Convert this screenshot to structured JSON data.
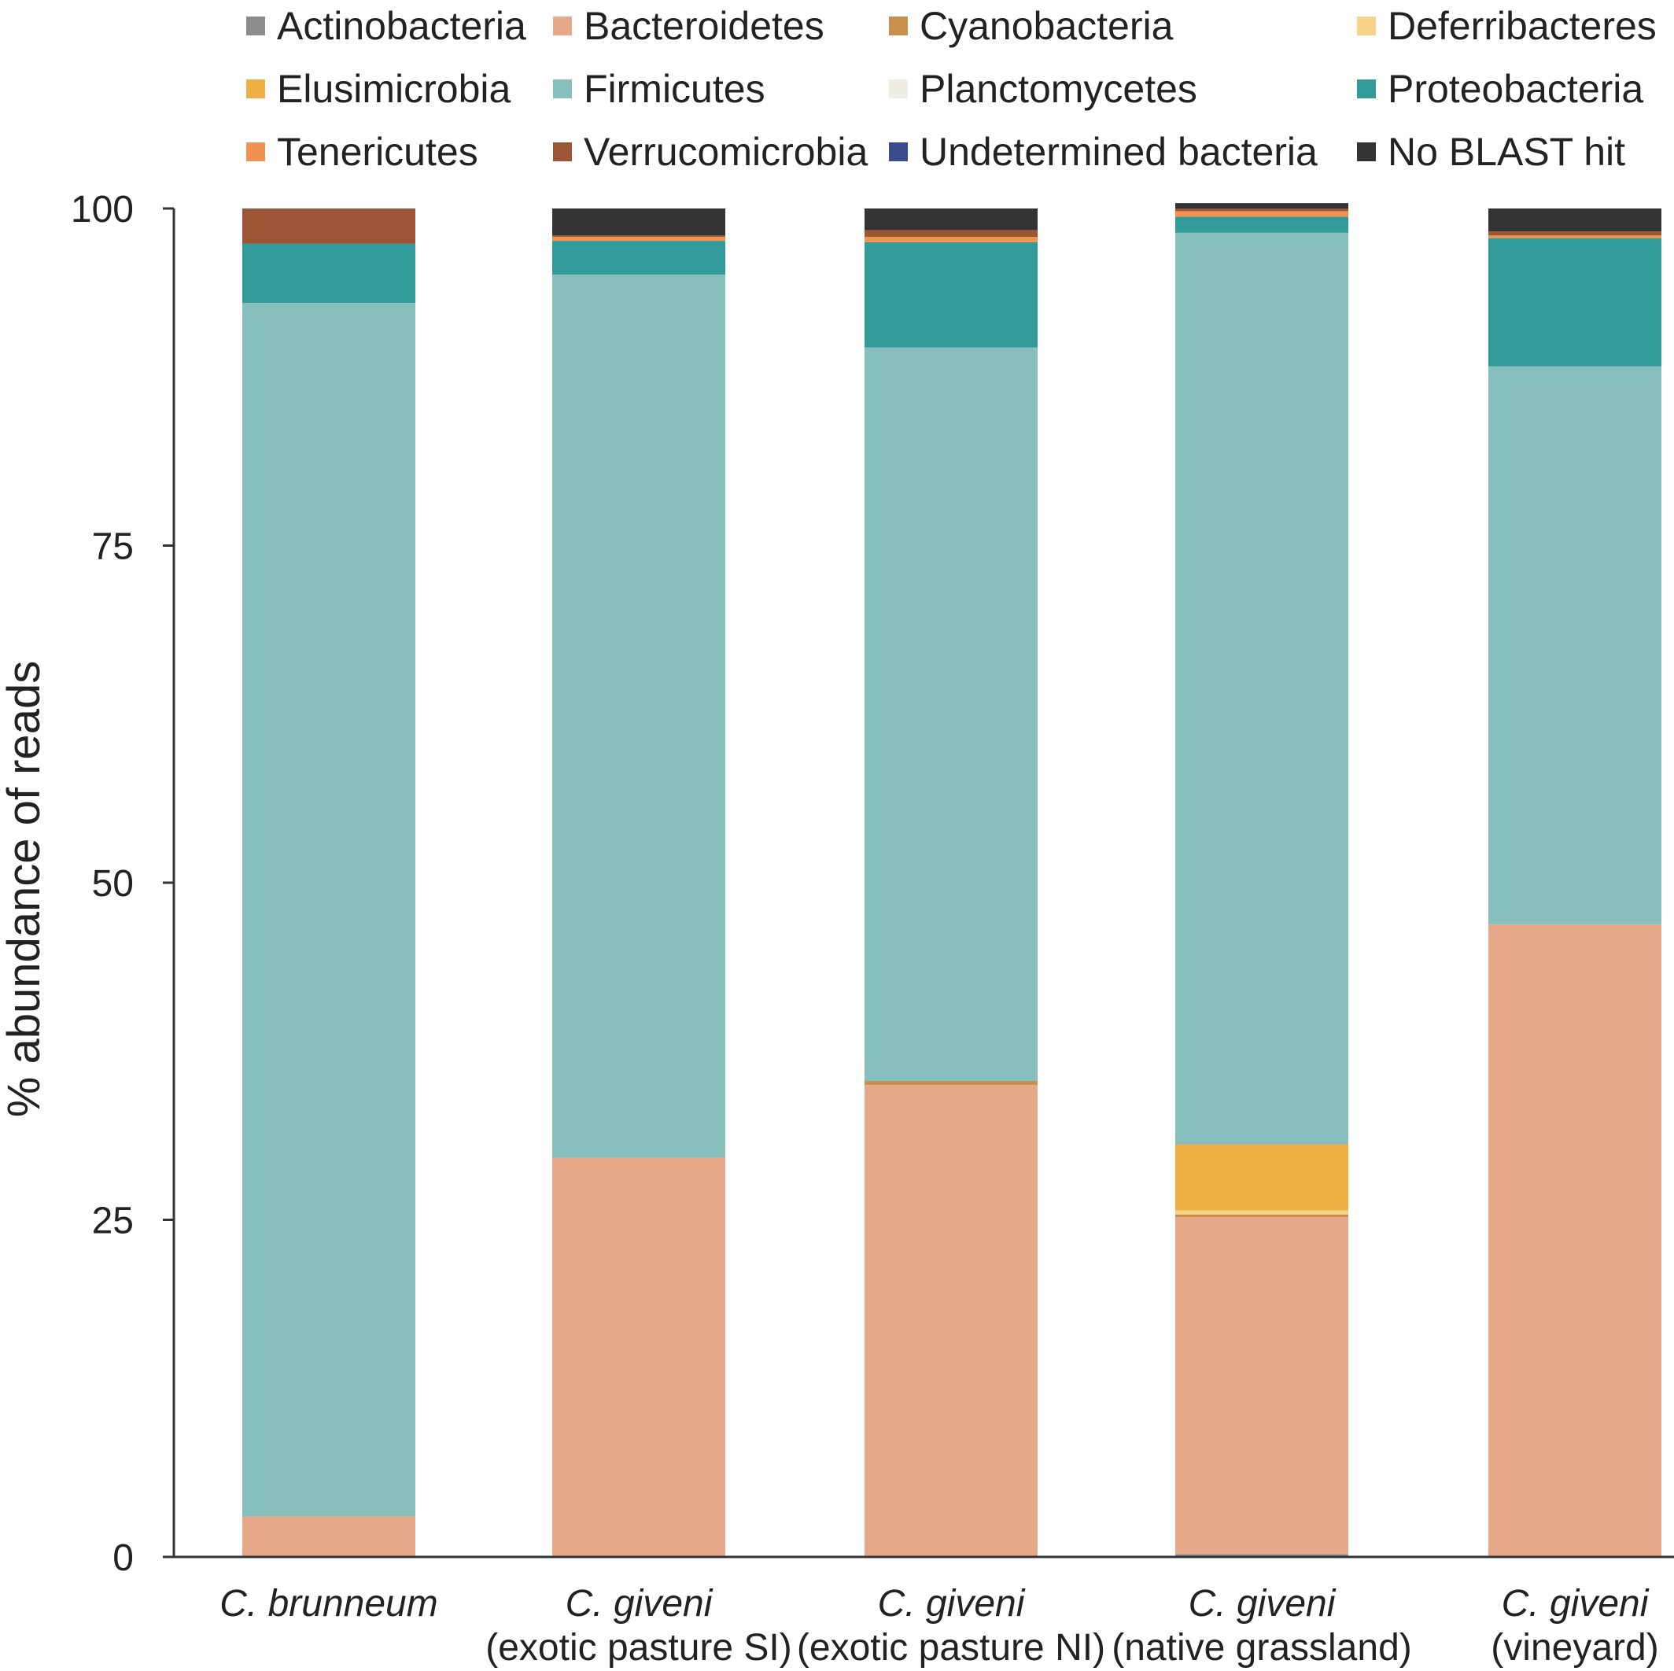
{
  "chart_data": {
    "type": "bar",
    "stacked": true,
    "title": "",
    "xlabel": "",
    "ylabel": "% abundance of reads",
    "ylim": [
      0,
      100
    ],
    "yticks": [
      0,
      25,
      50,
      75,
      100
    ],
    "grid": false,
    "legend_position": "top",
    "categories": [
      {
        "line1": "C. brunneum",
        "line2": ""
      },
      {
        "line1": "C. giveni",
        "line2": "(exotic pasture SI)"
      },
      {
        "line1": "C. giveni",
        "line2": "(exotic pasture NI)"
      },
      {
        "line1": "C. giveni",
        "line2": "(native grassland)"
      },
      {
        "line1": "C. giveni",
        "line2": "(vineyard)"
      }
    ],
    "series": [
      {
        "name": "Actinobacteria",
        "color": "#8c8c8c",
        "values": [
          0,
          0,
          0,
          0.2,
          0
        ]
      },
      {
        "name": "Bacteroidetes",
        "color": "#e8a98a",
        "values": [
          3,
          29.6,
          35,
          25,
          46.9
        ]
      },
      {
        "name": "Cyanobacteria",
        "color": "#c98f4e",
        "values": [
          0,
          0,
          0.3,
          0.2,
          0
        ]
      },
      {
        "name": "Deferribacteres",
        "color": "#f7d48a",
        "values": [
          0,
          0,
          0,
          0.3,
          0
        ]
      },
      {
        "name": "Elusimicrobia",
        "color": "#efaf45",
        "values": [
          0,
          0,
          0,
          4.9,
          0
        ]
      },
      {
        "name": "Firmicutes",
        "color": "#87bfbd",
        "values": [
          90,
          65.5,
          54.4,
          67.6,
          41.4
        ]
      },
      {
        "name": "Planctomycetes",
        "color": "#eeeee6",
        "values": [
          0,
          0,
          0,
          0,
          0
        ]
      },
      {
        "name": "Proteobacteria",
        "color": "#329a99",
        "values": [
          4.4,
          2.5,
          7.8,
          1.2,
          9.5
        ]
      },
      {
        "name": "Tenericutes",
        "color": "#f29250",
        "values": [
          0,
          0.3,
          0.4,
          0.4,
          0.2
        ]
      },
      {
        "name": "Verrucomicrobia",
        "color": "#9c5535",
        "values": [
          2.6,
          0.1,
          0.5,
          0.2,
          0.3
        ]
      },
      {
        "name": "Undetermined bacteria",
        "color": "#3a4a8a",
        "values": [
          0,
          0,
          0,
          0,
          0
        ]
      },
      {
        "name": "No BLAST hit",
        "color": "#333333",
        "values": [
          0,
          2,
          1.6,
          0.4,
          1.7
        ]
      }
    ]
  }
}
